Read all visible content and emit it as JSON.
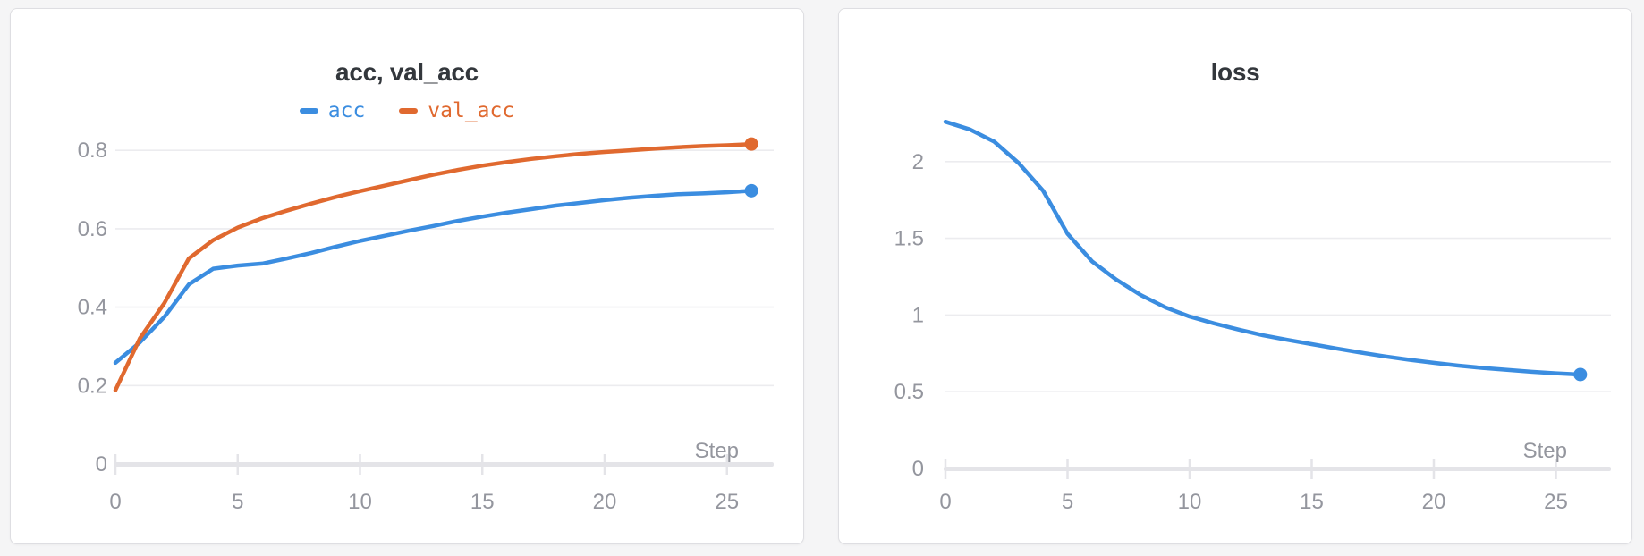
{
  "page": {
    "background": "#f5f5f6"
  },
  "theme": {
    "card_background": "#ffffff",
    "card_border": "#dedee2",
    "title_color": "#33373c",
    "tick_label_color": "#94969e",
    "gridline_color": "#ececef",
    "axis_color": "#e4e4e8",
    "series_blue": "#3b8de0",
    "series_orange": "#e0692f"
  },
  "chart_data": [
    {
      "type": "line",
      "title": "acc, val_acc",
      "xlabel": "Step",
      "ylabel": "",
      "grid": true,
      "legend_position": "top-center",
      "end_point_marker": true,
      "xlim": [
        0,
        26.9
      ],
      "ylim": [
        0,
        0.9
      ],
      "x_ticks": [
        0,
        5,
        10,
        15,
        20,
        25
      ],
      "y_ticks": [
        0,
        0.2,
        0.4,
        0.6,
        0.8
      ],
      "x": [
        0,
        1,
        2,
        3,
        4,
        5,
        6,
        7,
        8,
        9,
        10,
        11,
        12,
        13,
        14,
        15,
        16,
        17,
        18,
        19,
        20,
        21,
        22,
        23,
        24,
        25,
        26
      ],
      "series": [
        {
          "name": "acc",
          "color": "#3b8de0",
          "values": [
            0.258,
            0.31,
            0.375,
            0.458,
            0.498,
            0.506,
            0.511,
            0.524,
            0.538,
            0.554,
            0.569,
            0.582,
            0.595,
            0.607,
            0.62,
            0.631,
            0.641,
            0.65,
            0.659,
            0.666,
            0.673,
            0.679,
            0.684,
            0.688,
            0.69,
            0.693,
            0.697
          ]
        },
        {
          "name": "val_acc",
          "color": "#e0692f",
          "values": [
            0.188,
            0.32,
            0.41,
            0.524,
            0.571,
            0.603,
            0.627,
            0.646,
            0.664,
            0.681,
            0.696,
            0.71,
            0.724,
            0.738,
            0.75,
            0.761,
            0.77,
            0.778,
            0.785,
            0.791,
            0.796,
            0.8,
            0.804,
            0.808,
            0.811,
            0.813,
            0.816
          ]
        }
      ]
    },
    {
      "type": "line",
      "title": "loss",
      "xlabel": "Step",
      "ylabel": "",
      "grid": true,
      "legend_position": "none",
      "end_point_marker": true,
      "xlim": [
        0,
        27.2
      ],
      "ylim": [
        0,
        2.9
      ],
      "x_ticks": [
        0,
        5,
        10,
        15,
        20,
        25
      ],
      "y_ticks": [
        0,
        0.5,
        1,
        1.5,
        2
      ],
      "x": [
        0,
        1,
        2,
        3,
        4,
        5,
        6,
        7,
        8,
        9,
        10,
        11,
        12,
        13,
        14,
        15,
        16,
        17,
        18,
        19,
        20,
        21,
        22,
        23,
        24,
        25,
        26
      ],
      "series": [
        {
          "name": "loss",
          "color": "#3b8de0",
          "values": [
            2.26,
            2.21,
            2.13,
            1.99,
            1.81,
            1.53,
            1.35,
            1.23,
            1.13,
            1.05,
            0.99,
            0.945,
            0.905,
            0.868,
            0.838,
            0.81,
            0.782,
            0.755,
            0.73,
            0.708,
            0.688,
            0.67,
            0.655,
            0.642,
            0.63,
            0.62,
            0.612
          ]
        }
      ]
    }
  ]
}
